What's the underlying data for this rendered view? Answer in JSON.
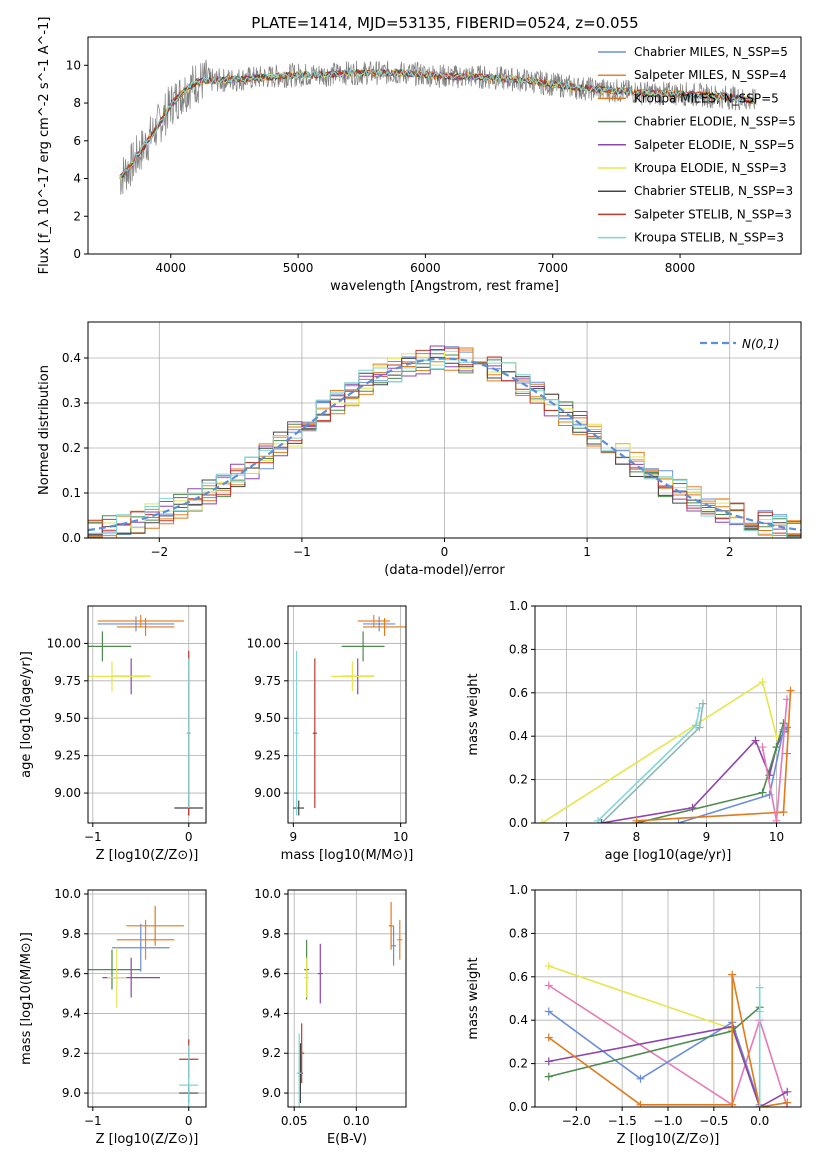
{
  "title": "PLATE=1414, MJD=53135, FIBERID=0524, z=0.055",
  "series_colors": [
    "#6a8edb",
    "#e8822e",
    "#e07a1a",
    "#4d8a4d",
    "#8e44ad",
    "#e6e64a",
    "#444444",
    "#c0392b",
    "#7fd6d6"
  ],
  "chart_data": [
    {
      "type": "line",
      "id": "spectrum",
      "title": "PLATE=1414, MJD=53135, FIBERID=0524, z=0.055",
      "xlabel": "wavelength [Angstrom, rest frame]",
      "ylabel": "Flux [f_λ 10^-17 erg cm^-2 s^-1 A^-1]",
      "xlim": [
        3350,
        8950
      ],
      "ylim": [
        0,
        11.5
      ],
      "xticks": [
        4000,
        5000,
        6000,
        7000,
        8000
      ],
      "yticks": [
        0,
        2,
        4,
        6,
        8,
        10
      ],
      "grid": false,
      "legend_position": "top-right",
      "legend": [
        {
          "label": "Chabrier MILES, N_SSP=5",
          "color": "#6a8edb"
        },
        {
          "label": "Salpeter MILES, N_SSP=4",
          "color": "#e8822e"
        },
        {
          "label": "Kroupa MILES, N_SSP=5",
          "color": "#e07a1a"
        },
        {
          "label": "Chabrier ELODIE, N_SSP=5",
          "color": "#4d8a4d"
        },
        {
          "label": "Salpeter ELODIE, N_SSP=5",
          "color": "#8e44ad"
        },
        {
          "label": "Kroupa ELODIE, N_SSP=3",
          "color": "#e6e64a"
        },
        {
          "label": "Chabrier STELIB, N_SSP=3",
          "color": "#444444"
        },
        {
          "label": "Salpeter STELIB, N_SSP=3",
          "color": "#c0392b"
        },
        {
          "label": "Kroupa STELIB, N_SSP=3",
          "color": "#7fd6d6"
        }
      ],
      "data_curve": {
        "x": [
          3600,
          3700,
          3800,
          3900,
          4000,
          4100,
          4200,
          4300,
          4400,
          4600,
          4800,
          5000,
          5200,
          5400,
          5600,
          5800,
          6000,
          6200,
          6400,
          6600,
          6800,
          7000,
          7200,
          7400,
          7600,
          7800,
          8000,
          8200,
          8400,
          8600
        ],
        "y": [
          4.0,
          4.8,
          5.8,
          6.8,
          7.9,
          8.6,
          9.1,
          9.2,
          9.2,
          9.3,
          9.4,
          9.5,
          9.5,
          9.6,
          9.6,
          9.6,
          9.5,
          9.4,
          9.4,
          9.3,
          9.2,
          9.0,
          8.8,
          8.7,
          8.6,
          8.5,
          8.5,
          8.4,
          8.3,
          8.1
        ]
      }
    },
    {
      "type": "line",
      "id": "residuals",
      "xlabel": "(data-model)/error",
      "ylabel": "Normed distribution",
      "xlim": [
        -2.5,
        2.5
      ],
      "ylim": [
        0,
        0.48
      ],
      "xticks": [
        -2,
        -1,
        0,
        1,
        2
      ],
      "yticks": [
        0.0,
        0.1,
        0.2,
        0.3,
        0.4
      ],
      "grid": true,
      "legend_position": "top-right",
      "legend": [
        {
          "label": "N(0,1)",
          "color": "#5b8fd6"
        }
      ]
    },
    {
      "type": "scatter",
      "id": "age-vs-z",
      "xlabel": "Z [log10(Z/Z⊙)]",
      "ylabel": "age [log10(age/yr)]",
      "xlim": [
        -1.05,
        0.18
      ],
      "ylim": [
        8.8,
        10.25
      ],
      "xticks": [
        -1,
        0
      ],
      "yticks": [
        9.0,
        9.25,
        9.5,
        9.75,
        10.0
      ],
      "grid": true
    },
    {
      "type": "scatter",
      "id": "age-vs-mass",
      "xlabel": "mass [log10(M/M⊙)]",
      "ylabel": "",
      "xlim": [
        8.95,
        10.05
      ],
      "ylim": [
        8.8,
        10.25
      ],
      "xticks": [
        9,
        10
      ],
      "yticks": [
        9.0,
        9.25,
        9.5,
        9.75,
        10.0
      ],
      "grid": true
    },
    {
      "type": "line",
      "id": "weight-vs-age",
      "xlabel": "age [log10(age/yr)]",
      "ylabel": "mass weight",
      "xlim": [
        6.55,
        10.35
      ],
      "ylim": [
        0,
        1.0
      ],
      "xticks": [
        7,
        8,
        9,
        10
      ],
      "yticks": [
        0.0,
        0.2,
        0.4,
        0.6,
        0.8,
        1.0
      ],
      "grid": true,
      "series": [
        {
          "color": "#e6e64a",
          "x": [
            6.65,
            9.8,
            10.0
          ],
          "y": [
            0.0,
            0.65,
            0.4
          ]
        },
        {
          "color": "#8fb8b8",
          "x": [
            7.5,
            8.9,
            8.95
          ],
          "y": [
            0.0,
            0.44,
            0.55
          ]
        },
        {
          "color": "#7fd6d6",
          "x": [
            7.45,
            8.85,
            8.9
          ],
          "y": [
            0.01,
            0.45,
            0.53
          ]
        },
        {
          "color": "#8e44ad",
          "x": [
            7.5,
            8.8,
            9.7,
            9.9,
            10.0,
            10.1
          ],
          "y": [
            0.0,
            0.07,
            0.38,
            0.22,
            0.35,
            0.42
          ]
        },
        {
          "color": "#4d8a4d",
          "x": [
            8.0,
            9.8,
            10.0,
            10.1
          ],
          "y": [
            0.0,
            0.14,
            0.35,
            0.46
          ]
        },
        {
          "color": "#6a8edb",
          "x": [
            8.6,
            9.9,
            10.1,
            10.15
          ],
          "y": [
            0.0,
            0.13,
            0.43,
            0.44
          ]
        },
        {
          "color": "#e07a1a",
          "x": [
            8.0,
            10.1,
            10.15,
            10.2
          ],
          "y": [
            0.01,
            0.05,
            0.32,
            0.61
          ]
        },
        {
          "color": "#e67ab8",
          "x": [
            9.8,
            10.0,
            10.15
          ],
          "y": [
            0.35,
            0.01,
            0.57
          ]
        }
      ]
    },
    {
      "type": "scatter",
      "id": "mass-vs-z",
      "xlabel": "Z [log10(Z/Z⊙)]",
      "ylabel": "mass [log10(M/M⊙)]",
      "xlim": [
        -1.05,
        0.18
      ],
      "ylim": [
        8.93,
        10.02
      ],
      "xticks": [
        -1,
        0
      ],
      "yticks": [
        9.0,
        9.2,
        9.4,
        9.6,
        9.8,
        10.0
      ],
      "grid": true
    },
    {
      "type": "scatter",
      "id": "mass-vs-ebv",
      "xlabel": "E(B-V)",
      "ylabel": "",
      "xlim": [
        0.045,
        0.14
      ],
      "ylim": [
        8.93,
        10.02
      ],
      "xticks": [
        0.05,
        0.1
      ],
      "yticks": [
        9.0,
        9.2,
        9.4,
        9.6,
        9.8,
        10.0
      ],
      "grid": true
    },
    {
      "type": "line",
      "id": "weight-vs-z",
      "xlabel": "Z [log10(Z/Z⊙)]",
      "ylabel": "mass weight",
      "xlim": [
        -2.45,
        0.45
      ],
      "ylim": [
        0,
        1.0
      ],
      "xticks": [
        -2.0,
        -1.5,
        -1.0,
        -0.5,
        0.0
      ],
      "yticks": [
        0.0,
        0.2,
        0.4,
        0.6,
        0.8,
        1.0
      ],
      "grid": true,
      "series": [
        {
          "color": "#e6e64a",
          "x": [
            -2.3,
            -0.3,
            0.0
          ],
          "y": [
            0.65,
            0.36,
            0.0
          ]
        },
        {
          "color": "#e67ab8",
          "x": [
            -2.3,
            -0.3,
            0.0,
            0.3
          ],
          "y": [
            0.56,
            0.01,
            0.4,
            0.0
          ]
        },
        {
          "color": "#6a8edb",
          "x": [
            -2.3,
            -1.3,
            -0.3,
            0.0
          ],
          "y": [
            0.44,
            0.13,
            0.39,
            0.01
          ]
        },
        {
          "color": "#8e44ad",
          "x": [
            -2.3,
            -0.3,
            0.0,
            0.3
          ],
          "y": [
            0.21,
            0.37,
            0.0,
            0.07
          ]
        },
        {
          "color": "#4d8a4d",
          "x": [
            -2.3,
            -0.3,
            0.0
          ],
          "y": [
            0.14,
            0.35,
            0.46
          ]
        },
        {
          "color": "#e07a1a",
          "x": [
            -2.3,
            -1.3,
            -0.3,
            -0.3,
            0.0,
            0.3
          ],
          "y": [
            0.32,
            0.01,
            0.01,
            0.61,
            0.0,
            0.02
          ]
        },
        {
          "color": "#7fd6d6",
          "x": [
            0.0,
            0.0,
            0.0
          ],
          "y": [
            0.0,
            0.55,
            0.44
          ]
        }
      ]
    }
  ]
}
